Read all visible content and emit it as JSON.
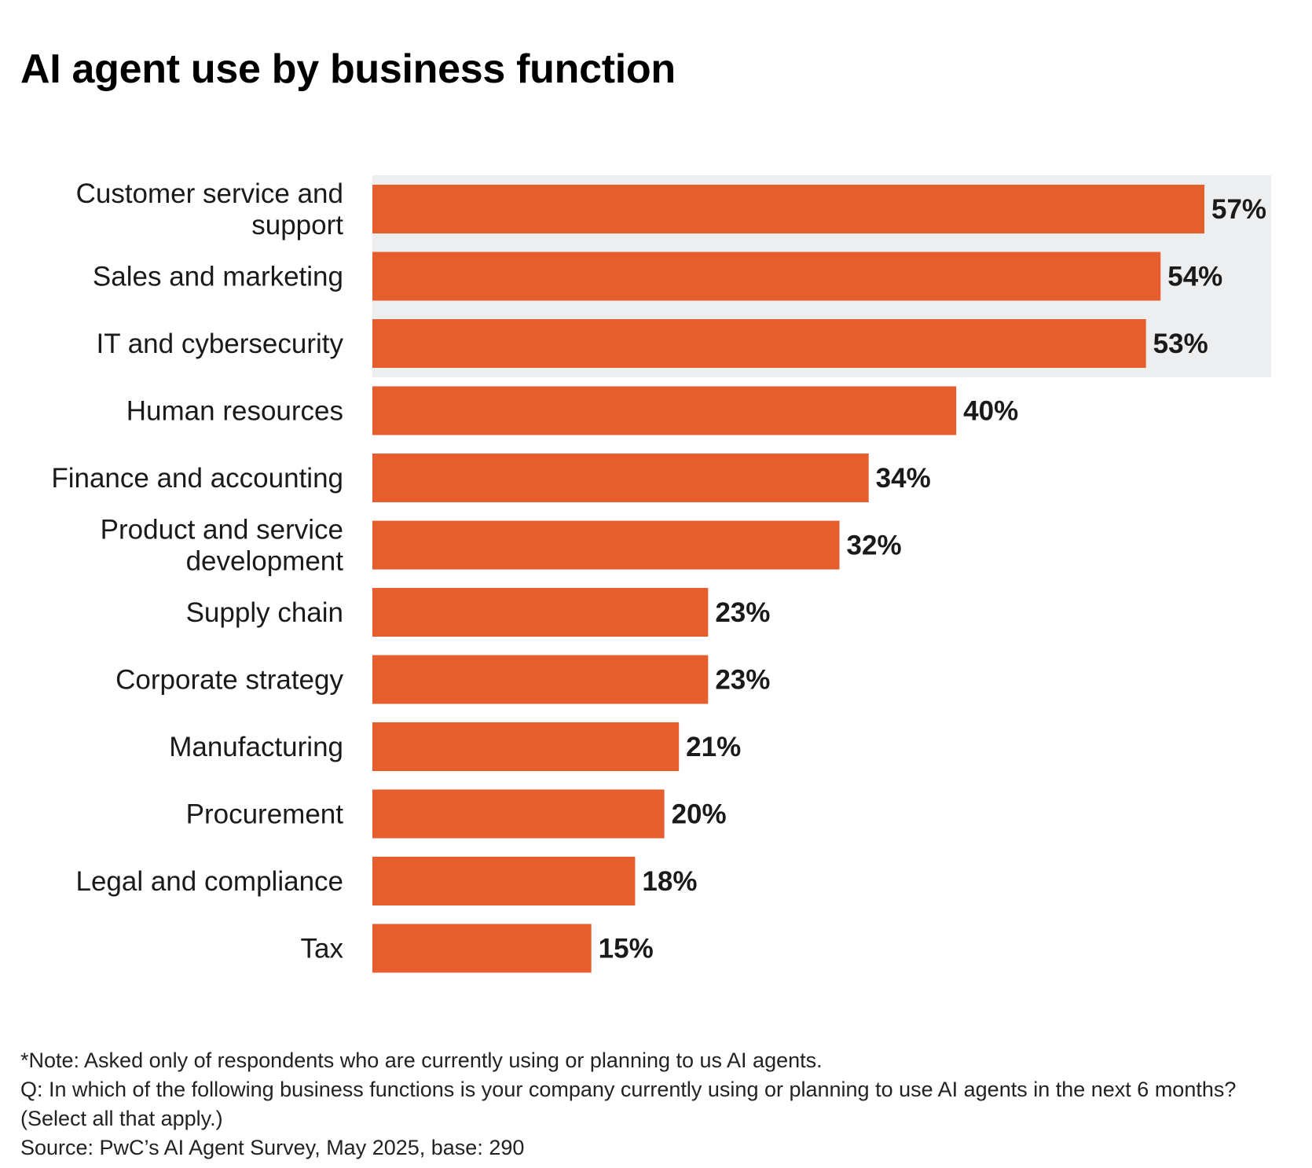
{
  "chart_data": {
    "type": "bar",
    "orientation": "horizontal",
    "title": "AI agent use by business function",
    "categories": [
      "Customer service and support",
      "Sales and marketing",
      "IT and cybersecurity",
      "Human resources",
      "Finance and accounting",
      "Product and service development",
      "Supply chain",
      "Corporate strategy",
      "Manufacturing",
      "Procurement",
      "Legal and compliance",
      "Tax"
    ],
    "category_lines": [
      [
        "Customer service and",
        "support"
      ],
      [
        "Sales and marketing"
      ],
      [
        "IT and cybersecurity"
      ],
      [
        "Human resources"
      ],
      [
        "Finance and accounting"
      ],
      [
        "Product and service",
        "development"
      ],
      [
        "Supply chain"
      ],
      [
        "Corporate strategy"
      ],
      [
        "Manufacturing"
      ],
      [
        "Procurement"
      ],
      [
        "Legal and compliance"
      ],
      [
        "Tax"
      ]
    ],
    "values": [
      57,
      54,
      53,
      40,
      34,
      32,
      23,
      23,
      21,
      20,
      18,
      15
    ],
    "value_labels": [
      "57%",
      "54%",
      "53%",
      "40%",
      "34%",
      "32%",
      "23%",
      "23%",
      "21%",
      "20%",
      "18%",
      "15%"
    ],
    "unit": "%",
    "xlim": [
      0,
      57
    ],
    "highlighted_categories": [
      "Customer service and support",
      "Sales and marketing",
      "IT and cybersecurity"
    ],
    "grid": false,
    "colors": {
      "bar": "#E65D2E",
      "highlight_band": "#EDEEF0",
      "text": "#1a1a1a"
    }
  },
  "notes": [
    "*Note: Asked only of respondents who are currently using or planning to us AI agents.",
    "Q: In which of the following business functions is your company currently using or planning to use AI agents in the next 6 months? (Select all that apply.)",
    "Source: PwC’s AI Agent Survey, May 2025, base: 290"
  ]
}
